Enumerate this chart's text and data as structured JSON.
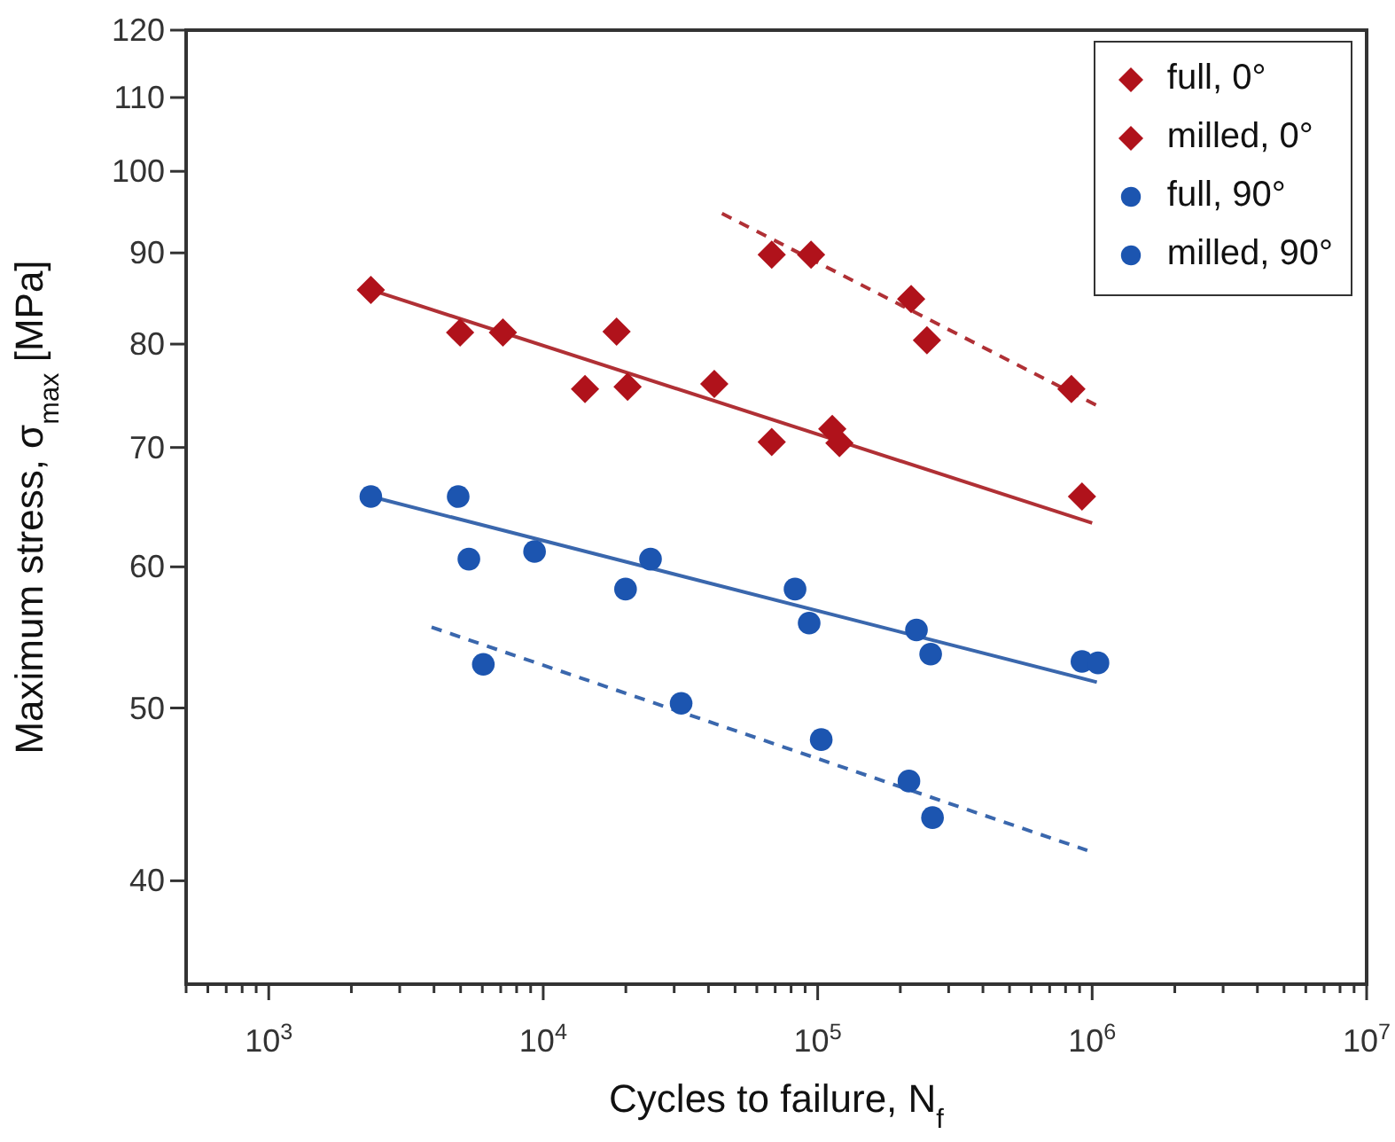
{
  "chart_data": {
    "type": "scatter",
    "xlabel": "Cycles to failure, N$_{f}$",
    "ylabel": "Maximum stress, σ$_{max}$  [MPa]",
    "log": "xy",
    "xlim": [
      500,
      10000000
    ],
    "ylim": [
      35,
      120
    ],
    "xticks": [
      {
        "value": 500,
        "label": null
      },
      {
        "value": 600,
        "label": null
      },
      {
        "value": 700,
        "label": null
      },
      {
        "value": 800,
        "label": null
      },
      {
        "value": 900,
        "label": null
      },
      {
        "value": 1000,
        "label": "10$^{3}$"
      },
      {
        "value": 2000,
        "label": null
      },
      {
        "value": 3000,
        "label": null
      },
      {
        "value": 4000,
        "label": null
      },
      {
        "value": 5000,
        "label": null
      },
      {
        "value": 6000,
        "label": null
      },
      {
        "value": 7000,
        "label": null
      },
      {
        "value": 8000,
        "label": null
      },
      {
        "value": 9000,
        "label": null
      },
      {
        "value": 10000,
        "label": "10$^{4}$"
      },
      {
        "value": 20000,
        "label": null
      },
      {
        "value": 30000,
        "label": null
      },
      {
        "value": 40000,
        "label": null
      },
      {
        "value": 50000,
        "label": null
      },
      {
        "value": 60000,
        "label": null
      },
      {
        "value": 70000,
        "label": null
      },
      {
        "value": 80000,
        "label": null
      },
      {
        "value": 90000,
        "label": null
      },
      {
        "value": 100000,
        "label": "10$^{5}$"
      },
      {
        "value": 200000,
        "label": null
      },
      {
        "value": 300000,
        "label": null
      },
      {
        "value": 400000,
        "label": null
      },
      {
        "value": 500000,
        "label": null
      },
      {
        "value": 600000,
        "label": null
      },
      {
        "value": 700000,
        "label": null
      },
      {
        "value": 800000,
        "label": null
      },
      {
        "value": 900000,
        "label": null
      },
      {
        "value": 1000000,
        "label": "10$^{6}$"
      },
      {
        "value": 2000000,
        "label": null
      },
      {
        "value": 3000000,
        "label": null
      },
      {
        "value": 4000000,
        "label": null
      },
      {
        "value": 5000000,
        "label": null
      },
      {
        "value": 6000000,
        "label": null
      },
      {
        "value": 7000000,
        "label": null
      },
      {
        "value": 8000000,
        "label": null
      },
      {
        "value": 9000000,
        "label": null
      },
      {
        "value": 10000000,
        "label": "10$^{7}$"
      }
    ],
    "yticks": [
      40,
      50,
      60,
      70,
      80,
      90,
      100,
      110,
      120
    ],
    "legend": "top right",
    "grid": false,
    "series": [
      {
        "name": "full, 0°",
        "type": "scatter",
        "marker": "diamond",
        "color": "#b0121b",
        "x": [
          2355,
          4980,
          7130,
          14200,
          18500,
          20300,
          42000,
          68000,
          113000,
          120000,
          918000
        ],
        "values": [
          85.8,
          81.2,
          81.2,
          75.5,
          81.3,
          75.7,
          76.0,
          70.5,
          71.7,
          70.4,
          65.7
        ]
      },
      {
        "name": "milled, 0°",
        "type": "scatter",
        "marker": "diamond",
        "color": "#b0121b",
        "x": [
          68000,
          94600,
          219000,
          250000,
          840000
        ],
        "values": [
          89.8,
          89.8,
          84.8,
          80.4,
          75.5
        ]
      },
      {
        "name": "full, 90°",
        "type": "scatter",
        "marker": "circle",
        "color": "#1c55b0",
        "x": [
          2355,
          4900,
          5360,
          9300,
          19950,
          24600,
          82700,
          93100,
          229000,
          258000,
          918000,
          1050000
        ],
        "values": [
          65.7,
          65.7,
          60.6,
          61.2,
          58.3,
          60.6,
          58.3,
          55.8,
          55.3,
          53.6,
          53.1,
          53.0
        ]
      },
      {
        "name": "milled, 90°",
        "type": "scatter",
        "marker": "circle",
        "color": "#1c55b0",
        "x": [
          6050,
          31800,
          103000,
          215000,
          262000
        ],
        "values": [
          52.9,
          50.3,
          48.0,
          45.5,
          43.4
        ]
      },
      {
        "type": "line",
        "marker": "none",
        "line_style": "solid",
        "color": "#b03035",
        "x": [
          2355,
          1000000
        ],
        "values": [
          85.8,
          63.5
        ]
      },
      {
        "type": "line",
        "marker": "none",
        "line_style": "dashed",
        "color": "#b03035",
        "x": [
          44800,
          1040000
        ],
        "values": [
          94.7,
          73.9
        ]
      },
      {
        "type": "line",
        "marker": "none",
        "line_style": "solid",
        "color": "#3a67ad",
        "x": [
          2355,
          1040000
        ],
        "values": [
          65.7,
          51.7
        ]
      },
      {
        "type": "line",
        "marker": "none",
        "line_style": "dashed",
        "color": "#3a67ad",
        "x": [
          3920,
          960000
        ],
        "values": [
          55.5,
          41.6
        ]
      }
    ]
  }
}
